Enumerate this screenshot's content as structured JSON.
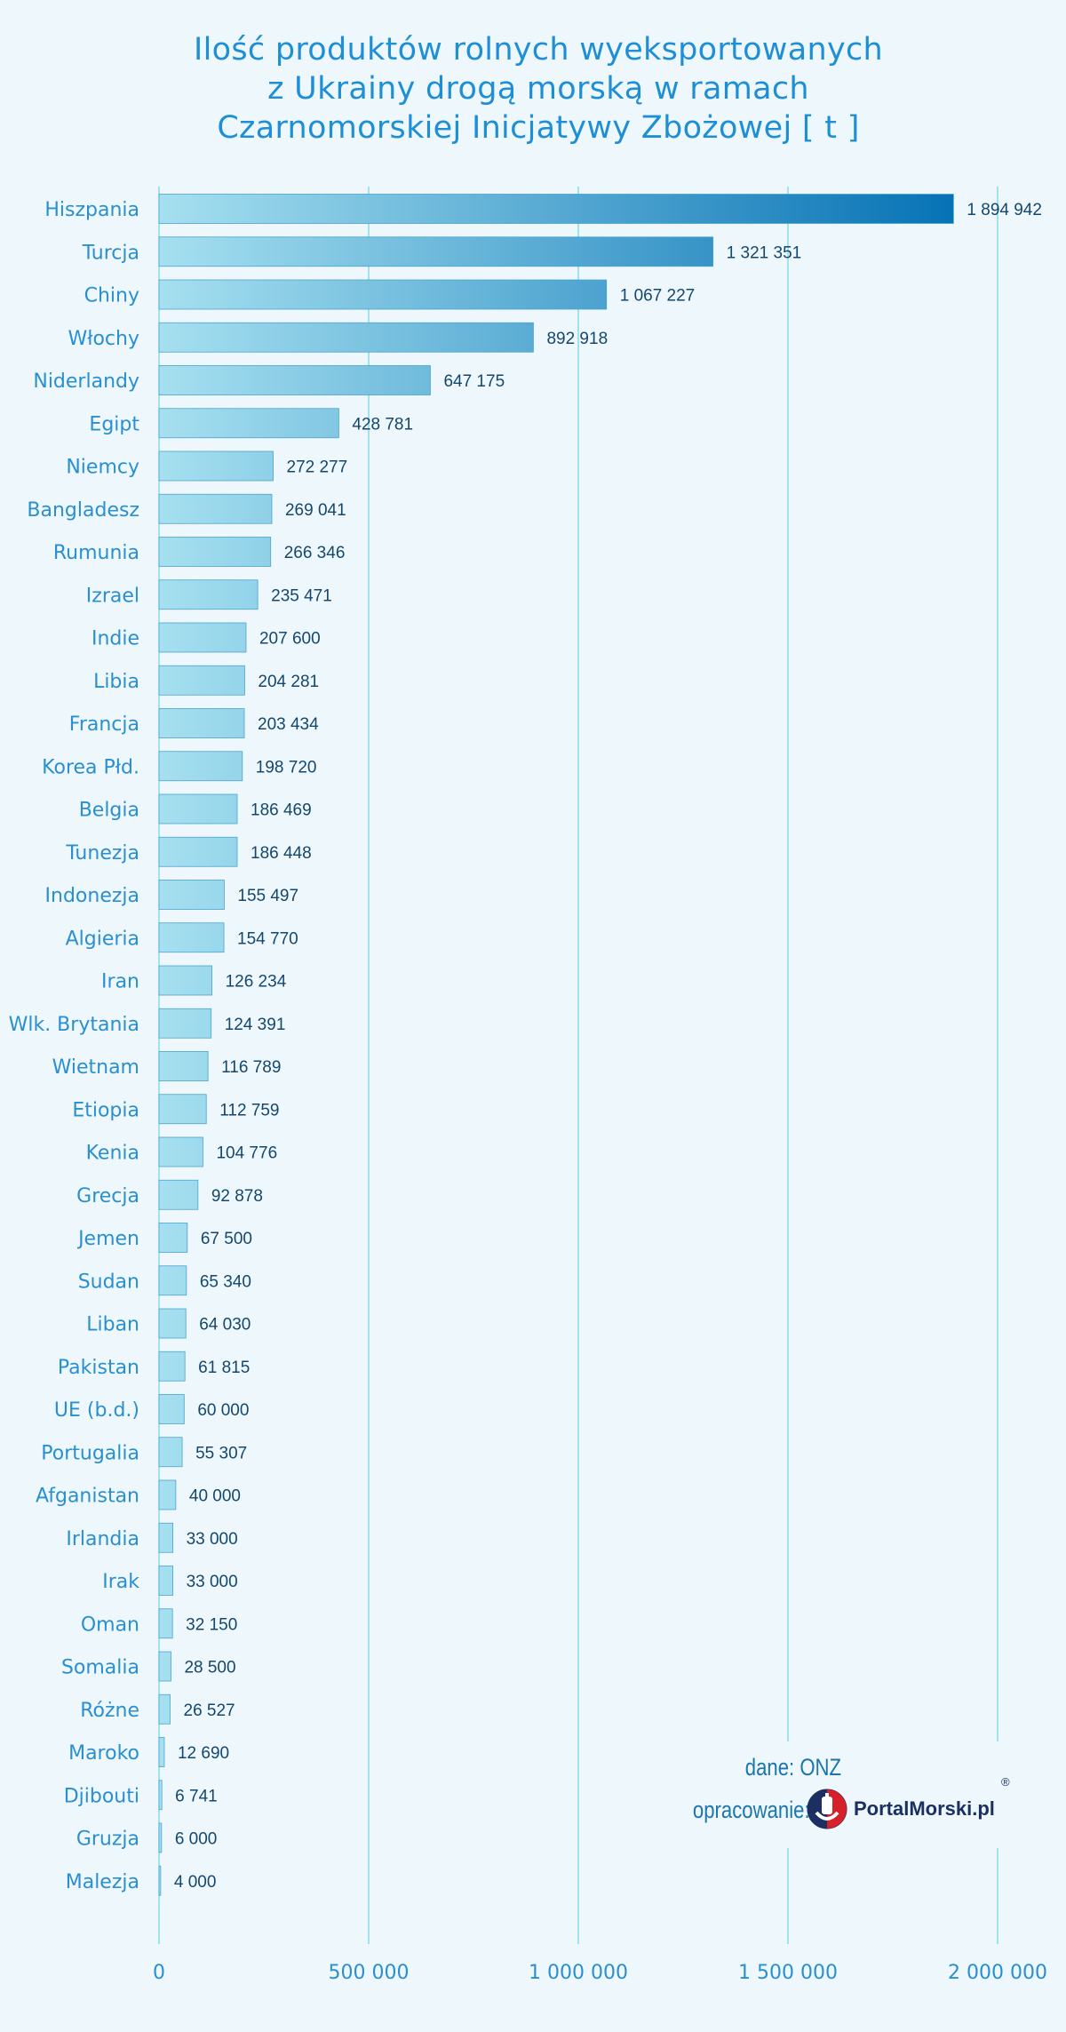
{
  "title_lines": [
    "Ilość produktów rolnych wyeksportowanych",
    "z Ukrainy drogą morską w ramach",
    "Czarnomorskiej Inicjatywy Zbożowej  [ t ]"
  ],
  "credits": {
    "source": "dane: ONZ",
    "author": "opracowanie:",
    "logo_text": "PortalMorski.pl",
    "logo_reg": "®"
  },
  "colors": {
    "background": "#eef8fc",
    "bar_light": "#a6e0f0",
    "bar_dark": "#0672b5",
    "gridline": "#7ad6e6",
    "text_blue": "#2a8fd0",
    "value_text": "#14476e"
  },
  "chart_data": {
    "type": "bar",
    "orientation": "horizontal",
    "title": "Ilość produktów rolnych wyeksportowanych z Ukrainy drogą morską w ramach Czarnomorskiej Inicjatywy Zbożowej  [ t ]",
    "xlabel": "",
    "ylabel": "",
    "xlim": [
      0,
      2000000
    ],
    "xticks": [
      0,
      500000,
      1000000,
      1500000,
      2000000
    ],
    "xtick_labels": [
      "0",
      "500 000",
      "1 000 000",
      "1 500 000",
      "2 000 000"
    ],
    "grid": "vertical",
    "categories": [
      "Hiszpania",
      "Turcja",
      "Chiny",
      "Włochy",
      "Niderlandy",
      "Egipt",
      "Niemcy",
      "Bangladesz",
      "Rumunia",
      "Izrael",
      "Indie",
      "Libia",
      "Francja",
      "Korea Płd.",
      "Belgia",
      "Tunezja",
      "Indonezja",
      "Algieria",
      "Iran",
      "Wlk. Brytania",
      "Wietnam",
      "Etiopia",
      "Kenia",
      "Grecja",
      "Jemen",
      "Sudan",
      "Liban",
      "Pakistan",
      "UE (b.d.)",
      "Portugalia",
      "Afganistan",
      "Irlandia",
      "Irak",
      "Oman",
      "Somalia",
      "Różne",
      "Maroko",
      "Djibouti",
      "Gruzja",
      "Malezja"
    ],
    "values": [
      1894942,
      1321351,
      1067227,
      892918,
      647175,
      428781,
      272277,
      269041,
      266346,
      235471,
      207600,
      204281,
      203434,
      198720,
      186469,
      186448,
      155497,
      154770,
      126234,
      124391,
      116789,
      112759,
      104776,
      92878,
      67500,
      65340,
      64030,
      61815,
      60000,
      55307,
      40000,
      33000,
      33000,
      32150,
      28500,
      26527,
      12690,
      6741,
      6000,
      4000
    ],
    "value_labels": [
      "1 894 942",
      "1 321 351",
      "1 067 227",
      "892 918",
      "647 175",
      "428 781",
      "272 277",
      "269 041",
      "266 346",
      "235 471",
      "207 600",
      "204 281",
      "203 434",
      "198 720",
      "186 469",
      "186 448",
      "155 497",
      "154 770",
      "126 234",
      "124 391",
      "116 789",
      "112 759",
      "104 776",
      "92 878",
      "67 500",
      "65 340",
      "64 030",
      "61 815",
      "60 000",
      "55 307",
      "40 000",
      "33 000",
      "33 000",
      "32 150",
      "28 500",
      "26 527",
      "12 690",
      "6 741",
      "6 000",
      "4 000"
    ]
  }
}
